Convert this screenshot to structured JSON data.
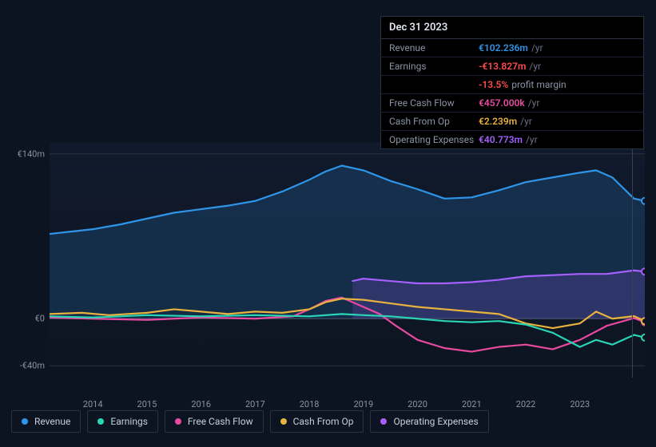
{
  "tooltip": {
    "date": "Dec 31 2023",
    "rows": [
      {
        "label": "Revenue",
        "value": "€102.236m",
        "unit": "/yr",
        "color": "#2f95e8"
      },
      {
        "label": "Earnings",
        "value": "-€13.827m",
        "unit": "/yr",
        "color": "#ff4d4d",
        "extra_value": "-13.5%",
        "extra_text": "profit margin",
        "extra_color": "#ff4d4d"
      },
      {
        "label": "Free Cash Flow",
        "value": "€457.000k",
        "unit": "/yr",
        "color": "#e84aa0"
      },
      {
        "label": "Cash From Op",
        "value": "€2.239m",
        "unit": "/yr",
        "color": "#e8b23e"
      },
      {
        "label": "Operating Expenses",
        "value": "€40.773m",
        "unit": "/yr",
        "color": "#a560ff"
      }
    ]
  },
  "chart": {
    "type": "line",
    "background_top": "#111a2c",
    "background_bottom": "#0d1421",
    "grid_color": "#2a3140",
    "zero_color": "#4a5262",
    "y_axis": {
      "min": -50,
      "max": 150,
      "ticks": [
        {
          "v": 140,
          "label": "€140m"
        },
        {
          "v": 0,
          "label": "€0"
        },
        {
          "v": -40,
          "label": "-€40m"
        }
      ]
    },
    "x_axis": {
      "min": 2013.2,
      "max": 2024.2,
      "ticks": [
        2014,
        2015,
        2016,
        2017,
        2018,
        2019,
        2020,
        2021,
        2022,
        2023
      ]
    },
    "marker_x": 2023.97,
    "line_width": 2.2,
    "fill_opacity": 0.18,
    "series": [
      {
        "name": "Revenue",
        "color": "#2f95e8",
        "fill": true,
        "end_dot": true,
        "points": [
          [
            2013.2,
            72
          ],
          [
            2013.6,
            74
          ],
          [
            2014.0,
            76
          ],
          [
            2014.5,
            80
          ],
          [
            2015.0,
            85
          ],
          [
            2015.5,
            90
          ],
          [
            2016.0,
            93
          ],
          [
            2016.5,
            96
          ],
          [
            2017.0,
            100
          ],
          [
            2017.5,
            108
          ],
          [
            2018.0,
            118
          ],
          [
            2018.3,
            125
          ],
          [
            2018.6,
            130
          ],
          [
            2019.0,
            126
          ],
          [
            2019.5,
            117
          ],
          [
            2020.0,
            110
          ],
          [
            2020.5,
            102
          ],
          [
            2021.0,
            103
          ],
          [
            2021.5,
            109
          ],
          [
            2022.0,
            116
          ],
          [
            2022.5,
            120
          ],
          [
            2023.0,
            124
          ],
          [
            2023.3,
            126
          ],
          [
            2023.6,
            120
          ],
          [
            2024.0,
            102
          ],
          [
            2024.2,
            100
          ]
        ]
      },
      {
        "name": "Operating Expenses",
        "color": "#a560ff",
        "fill": true,
        "end_dot": true,
        "points": [
          [
            2018.8,
            32
          ],
          [
            2019.0,
            34
          ],
          [
            2019.5,
            32
          ],
          [
            2020.0,
            30
          ],
          [
            2020.5,
            30
          ],
          [
            2021.0,
            31
          ],
          [
            2021.5,
            33
          ],
          [
            2022.0,
            36
          ],
          [
            2022.5,
            37
          ],
          [
            2023.0,
            38
          ],
          [
            2023.5,
            38
          ],
          [
            2024.0,
            41
          ],
          [
            2024.2,
            40
          ]
        ]
      },
      {
        "name": "Free Cash Flow",
        "color": "#e84aa0",
        "fill": false,
        "end_dot": true,
        "points": [
          [
            2013.2,
            1
          ],
          [
            2014.0,
            0
          ],
          [
            2015.0,
            -1
          ],
          [
            2016.0,
            1
          ],
          [
            2017.0,
            0
          ],
          [
            2017.7,
            2
          ],
          [
            2018.0,
            8
          ],
          [
            2018.3,
            15
          ],
          [
            2018.6,
            18
          ],
          [
            2019.0,
            10
          ],
          [
            2019.3,
            4
          ],
          [
            2019.6,
            -6
          ],
          [
            2020.0,
            -18
          ],
          [
            2020.5,
            -25
          ],
          [
            2021.0,
            -28
          ],
          [
            2021.5,
            -24
          ],
          [
            2022.0,
            -22
          ],
          [
            2022.5,
            -26
          ],
          [
            2023.0,
            -18
          ],
          [
            2023.5,
            -6
          ],
          [
            2024.0,
            0.5
          ],
          [
            2024.2,
            -3
          ]
        ]
      },
      {
        "name": "Cash From Op",
        "color": "#e8b23e",
        "fill": false,
        "end_dot": true,
        "points": [
          [
            2013.2,
            4
          ],
          [
            2013.8,
            5
          ],
          [
            2014.3,
            3
          ],
          [
            2015.0,
            5
          ],
          [
            2015.5,
            8
          ],
          [
            2016.0,
            6
          ],
          [
            2016.5,
            4
          ],
          [
            2017.0,
            6
          ],
          [
            2017.5,
            5
          ],
          [
            2018.0,
            8
          ],
          [
            2018.3,
            14
          ],
          [
            2018.6,
            17
          ],
          [
            2019.0,
            16
          ],
          [
            2019.5,
            13
          ],
          [
            2020.0,
            10
          ],
          [
            2020.5,
            8
          ],
          [
            2021.0,
            6
          ],
          [
            2021.5,
            4
          ],
          [
            2022.0,
            -4
          ],
          [
            2022.5,
            -8
          ],
          [
            2023.0,
            -4
          ],
          [
            2023.3,
            6
          ],
          [
            2023.6,
            0
          ],
          [
            2024.0,
            2.2
          ],
          [
            2024.2,
            -2
          ]
        ]
      },
      {
        "name": "Earnings",
        "color": "#2ad5b5",
        "fill": false,
        "end_dot": true,
        "points": [
          [
            2013.2,
            2
          ],
          [
            2014.0,
            1
          ],
          [
            2015.0,
            3
          ],
          [
            2016.0,
            2
          ],
          [
            2017.0,
            3
          ],
          [
            2018.0,
            2
          ],
          [
            2018.6,
            4
          ],
          [
            2019.0,
            3
          ],
          [
            2019.5,
            2
          ],
          [
            2020.0,
            0
          ],
          [
            2020.5,
            -2
          ],
          [
            2021.0,
            -3
          ],
          [
            2021.5,
            -2
          ],
          [
            2022.0,
            -5
          ],
          [
            2022.5,
            -12
          ],
          [
            2023.0,
            -24
          ],
          [
            2023.3,
            -18
          ],
          [
            2023.6,
            -22
          ],
          [
            2024.0,
            -13.8
          ],
          [
            2024.2,
            -16
          ]
        ]
      }
    ]
  },
  "legend": [
    {
      "label": "Revenue",
      "color": "#2f95e8"
    },
    {
      "label": "Earnings",
      "color": "#2ad5b5"
    },
    {
      "label": "Free Cash Flow",
      "color": "#e84aa0"
    },
    {
      "label": "Cash From Op",
      "color": "#e8b23e"
    },
    {
      "label": "Operating Expenses",
      "color": "#a560ff"
    }
  ]
}
